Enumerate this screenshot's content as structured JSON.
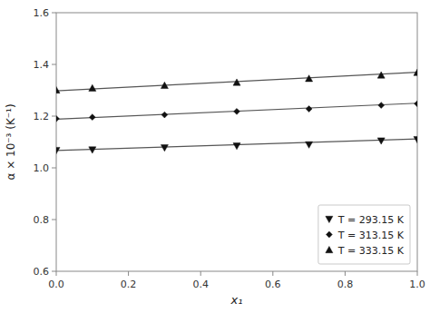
{
  "chart_data": {
    "type": "scatter",
    "xlabel": "x₁",
    "ylabel": "α × 10⁻³ (K⁻¹)",
    "xlim": [
      0.0,
      1.0
    ],
    "ylim": [
      0.6,
      1.6
    ],
    "xticks": [
      {
        "value": 0.0,
        "label": "0.0"
      },
      0.2,
      0.4,
      0.6,
      0.8,
      {
        "value": 1.0,
        "label": "1.0"
      }
    ],
    "yticks": [
      0.6,
      0.8,
      {
        "value": 1.0,
        "label": "1.0"
      },
      1.2,
      1.4,
      1.6
    ],
    "grid": false,
    "legend": "lower-right",
    "series": [
      {
        "type": "line",
        "color": "#555555",
        "line_style": "solid",
        "x": [
          0.0,
          1.0
        ],
        "values": [
          1.067,
          1.112
        ]
      },
      {
        "type": "scatter",
        "name": "T = 293.15 K",
        "color": "#111111",
        "marker": "triangle-down",
        "x": [
          0.0,
          0.1,
          0.3,
          0.5,
          0.7,
          0.9,
          1.0
        ],
        "values": [
          1.068,
          1.07,
          1.078,
          1.085,
          1.09,
          1.105,
          1.11
        ]
      },
      {
        "type": "line",
        "color": "#555555",
        "line_style": "solid",
        "x": [
          0.0,
          1.0
        ],
        "values": [
          1.188,
          1.25
        ]
      },
      {
        "type": "scatter",
        "name": "T = 313.15 K",
        "color": "#111111",
        "marker": "diamond",
        "x": [
          0.0,
          0.1,
          0.3,
          0.5,
          0.7,
          0.9,
          1.0
        ],
        "values": [
          1.19,
          1.196,
          1.205,
          1.218,
          1.228,
          1.242,
          1.248
        ]
      },
      {
        "type": "line",
        "color": "#555555",
        "line_style": "solid",
        "x": [
          0.0,
          1.0
        ],
        "values": [
          1.298,
          1.37
        ]
      },
      {
        "type": "scatter",
        "name": "T = 333.15 K",
        "color": "#111111",
        "marker": "triangle-up",
        "x": [
          0.0,
          0.1,
          0.3,
          0.5,
          0.7,
          0.9,
          1.0
        ],
        "values": [
          1.3,
          1.308,
          1.318,
          1.33,
          1.345,
          1.358,
          1.368
        ]
      }
    ]
  }
}
